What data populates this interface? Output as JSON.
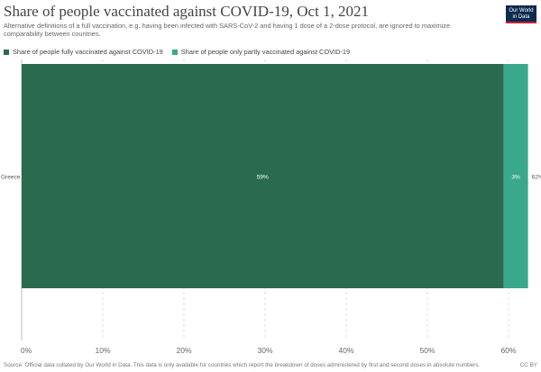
{
  "header": {
    "title": "Share of people vaccinated against COVID-19, Oct 1, 2021",
    "subtitle": "Alternative definitions of a full vaccination, e.g. having been infected with SARS-CoV-2 and having 1 dose of a 2-dose protocol, are ignored to maximize comparability between countries.",
    "logo_line1": "Our World",
    "logo_line2": "in Data"
  },
  "legend": {
    "items": [
      {
        "label": "Share of people fully vaccinated against COVID-19",
        "color": "#2a6b50"
      },
      {
        "label": "Share of people only partly vaccinated against COVID-19",
        "color": "#3aa88a"
      }
    ]
  },
  "footer": {
    "source": "Source: Official data collated by Our World in Data. This data is only available for countries which report the breakdown of doses administered by first and second doses in absolute numbers.",
    "license": "CC BY"
  },
  "chart_data": {
    "type": "bar",
    "orientation": "horizontal",
    "stacked": true,
    "categories": [
      "Greece"
    ],
    "series": [
      {
        "name": "Share of people fully vaccinated against COVID-19",
        "values": [
          59.4
        ],
        "labels": [
          "59%"
        ],
        "color": "#2a6b50"
      },
      {
        "name": "Share of people only partly vaccinated against COVID-19",
        "values": [
          3.0
        ],
        "labels": [
          "3%"
        ],
        "color": "#3aa88a"
      }
    ],
    "totals": [
      "62%"
    ],
    "xlim": [
      0,
      62
    ],
    "xticks": [
      0,
      10,
      20,
      30,
      40,
      50,
      60
    ],
    "xtick_labels": [
      "0%",
      "10%",
      "20%",
      "30%",
      "40%",
      "50%",
      "60%"
    ],
    "grid": true
  }
}
